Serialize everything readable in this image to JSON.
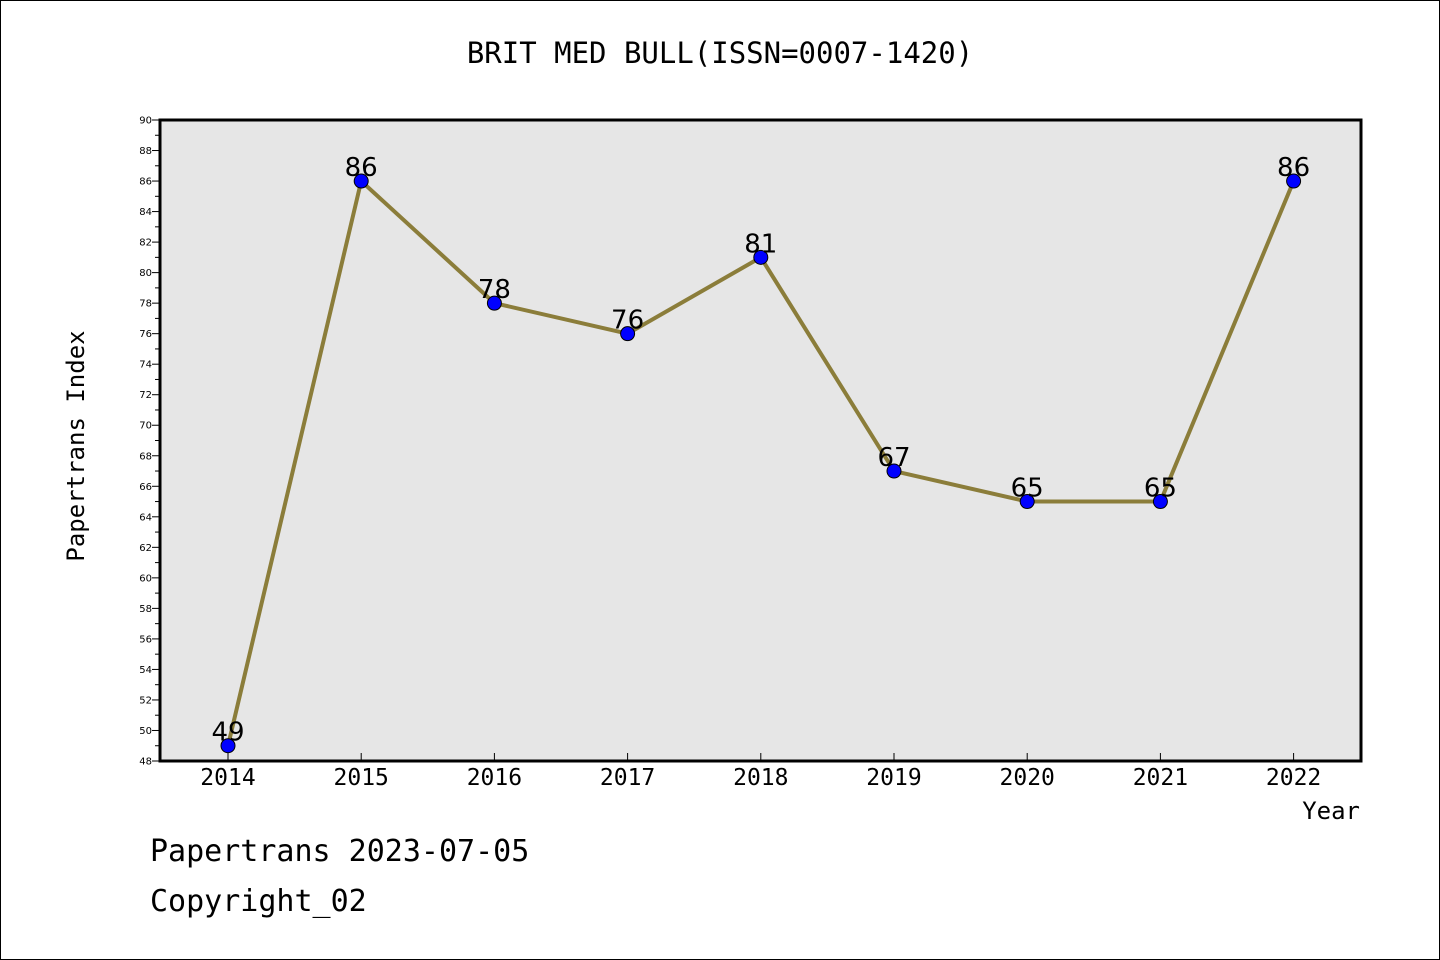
{
  "chart_data": {
    "type": "line",
    "title": "BRIT MED BULL(ISSN=0007-1420)",
    "xlabel": "Year",
    "ylabel": "Papertrans Index",
    "categories": [
      "2014",
      "2015",
      "2016",
      "2017",
      "2018",
      "2019",
      "2020",
      "2021",
      "2022"
    ],
    "series": [
      {
        "values": [
          49,
          86,
          78,
          76,
          81,
          67,
          65,
          65,
          86
        ],
        "line_color": "#8b7d3a",
        "marker_color": "#0000ff"
      }
    ],
    "ylim": [
      48,
      90
    ],
    "ytick_step": 2,
    "yticks": [
      "48",
      "50",
      "52",
      "54",
      "56",
      "58",
      "60",
      "62",
      "64",
      "66",
      "68",
      "70",
      "72",
      "74",
      "76",
      "78",
      "80",
      "82",
      "84",
      "86",
      "88",
      "90"
    ],
    "data_labels": true,
    "plot_background": "#e6e6e6",
    "grid": false,
    "legend": "none"
  },
  "footer": {
    "date_line": "Papertrans 2023-07-05",
    "copyright_line": "Copyright_02"
  }
}
